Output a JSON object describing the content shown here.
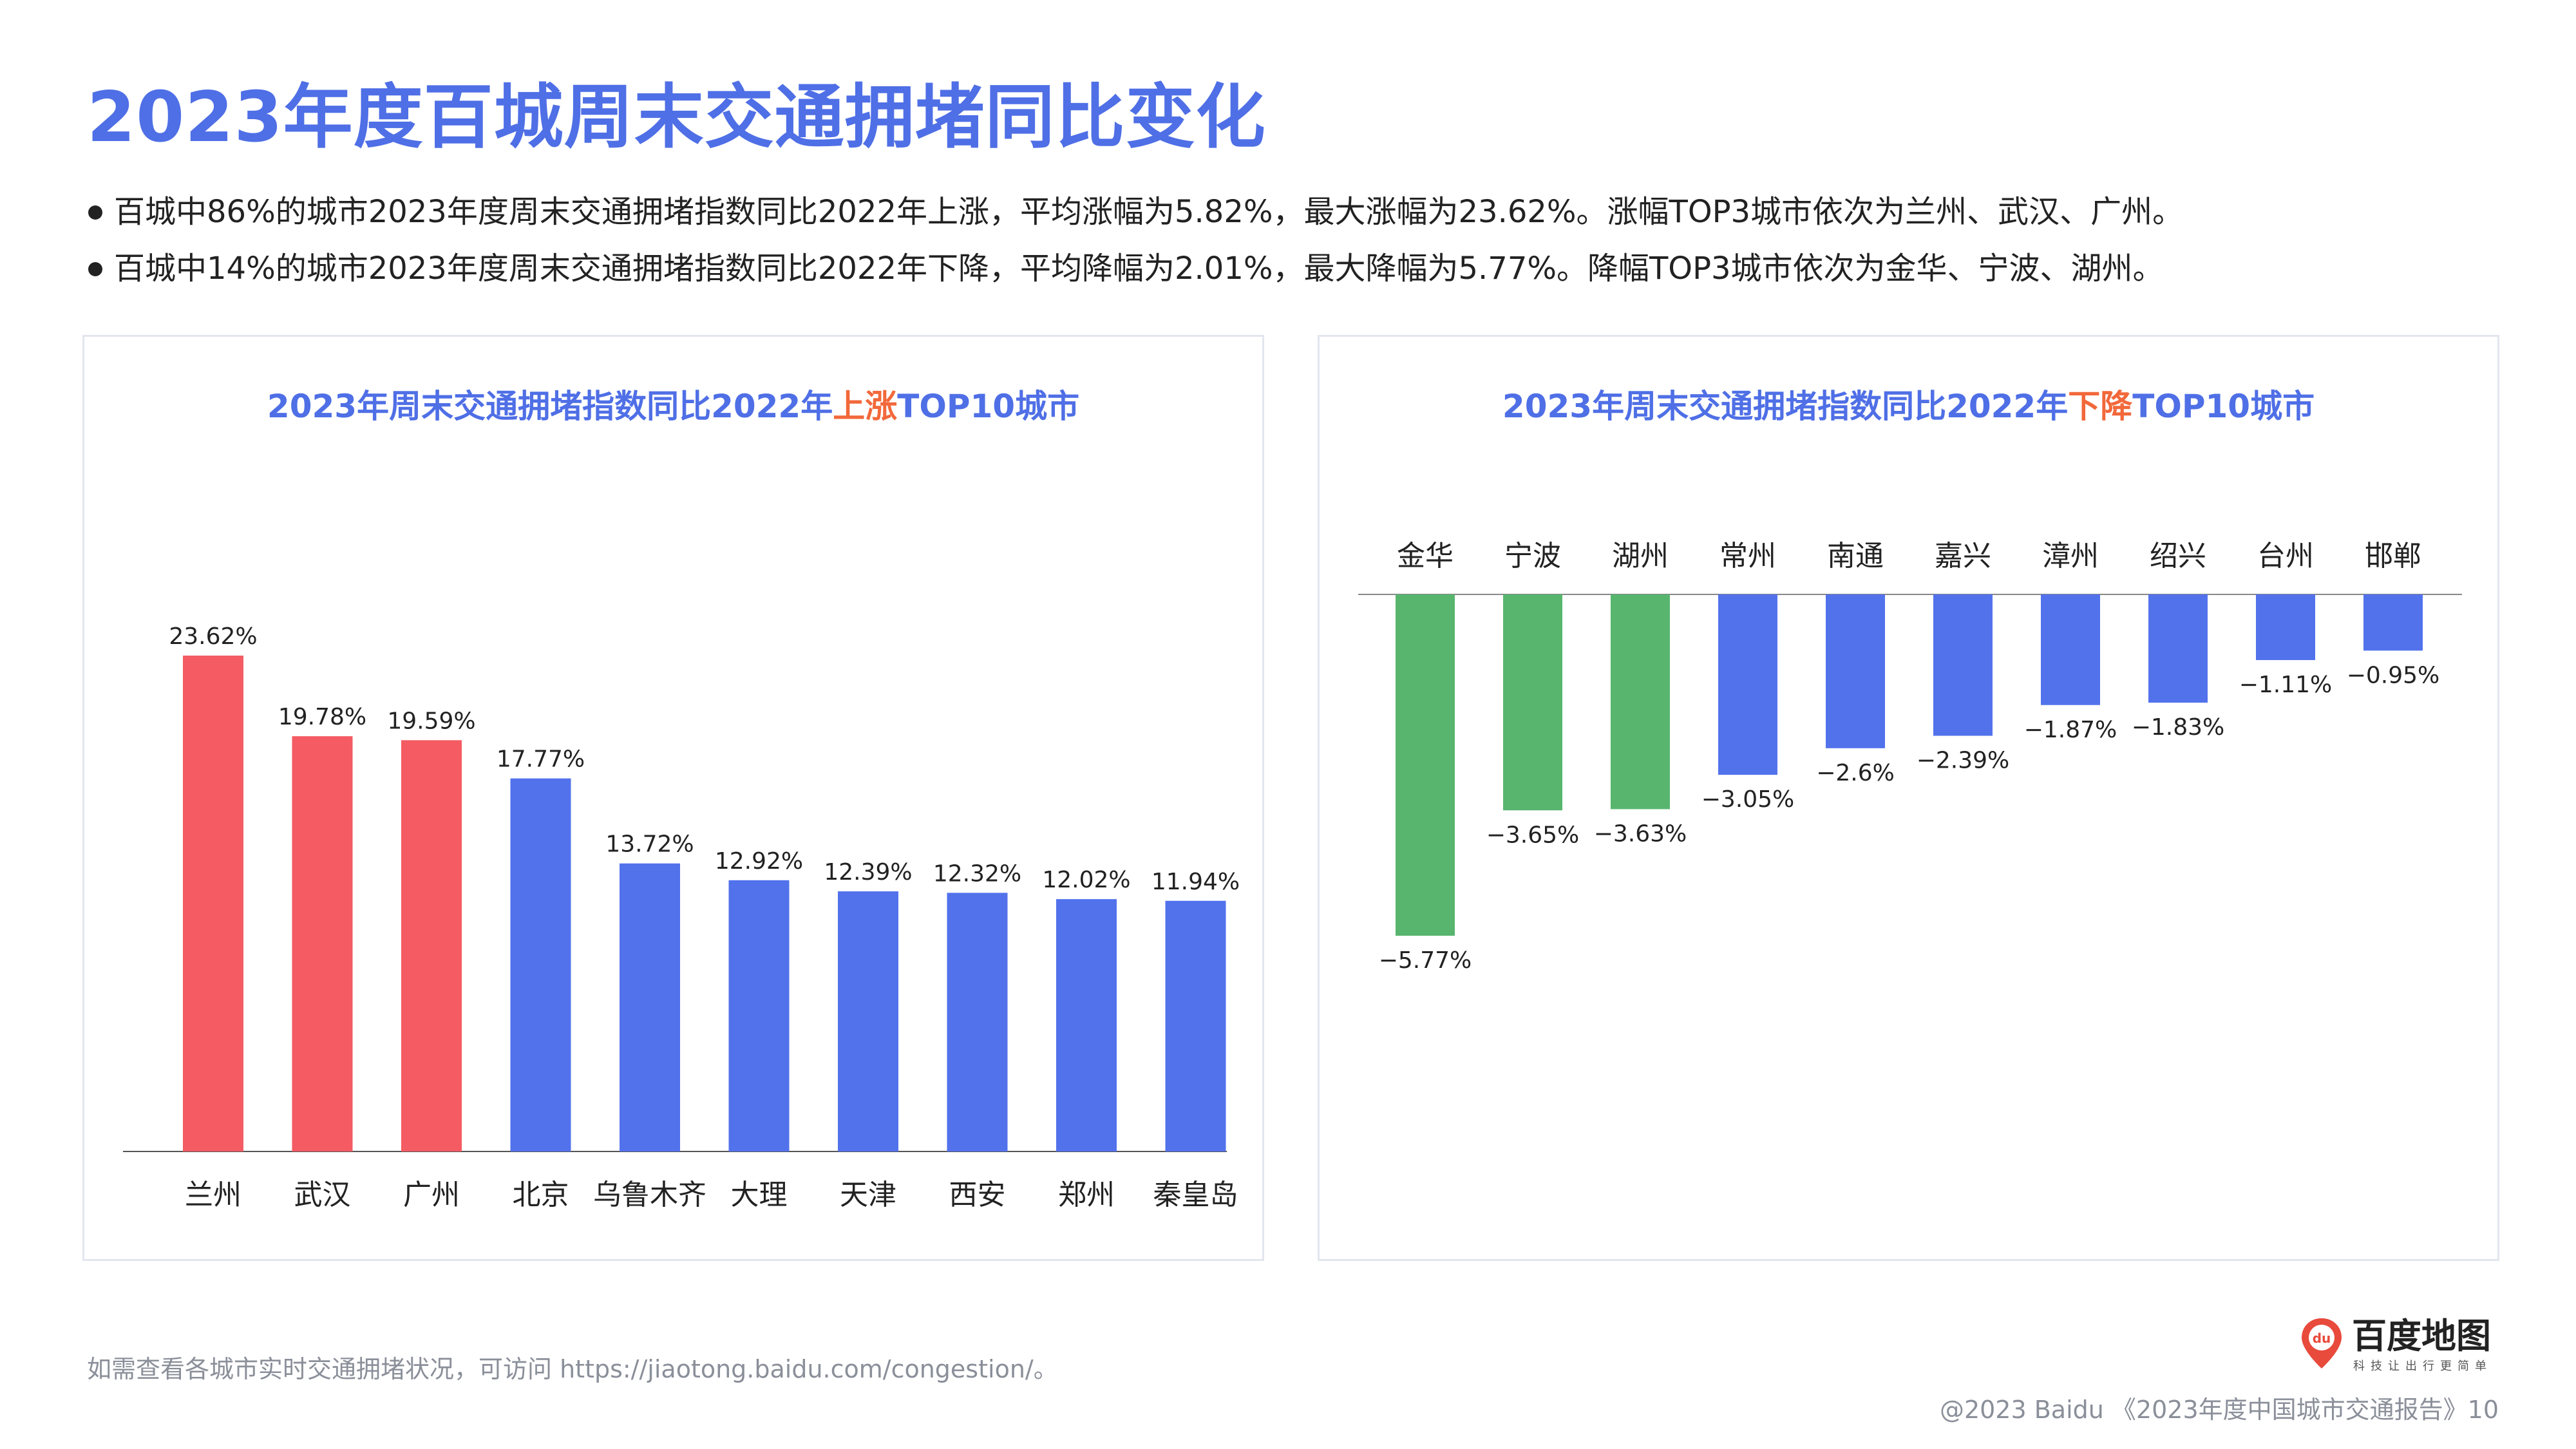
{
  "page": {
    "title": "2023年度百城周末交通拥堵同比变化",
    "bullets": [
      "百城中86%的城市2023年度周末交通拥堵指数同比2022年上涨，平均涨幅为5.82%，最大涨幅为23.62%。涨幅TOP3城市依次为兰州、武汉、广州。",
      "百城中14%的城市2023年度周末交通拥堵指数同比2022年下降，平均降幅为2.01%，最大降幅为5.77%。降幅TOP3城市依次为金华、宁波、湖州。"
    ],
    "footnote": "如需查看各城市实时交通拥堵状况，可访问 https://jiaotong.baidu.com/congestion/。",
    "copyright": "@2023 Baidu 《2023年度中国城市交通报告》10",
    "logo": {
      "name": "百度地图",
      "slogan": "科技让出行更简单",
      "icon": "baidu-map-pin-icon",
      "icon_text": "du"
    }
  },
  "colors": {
    "title": "#4F6FE6",
    "highlight": "#F2683A",
    "top3_rise": "#F45B62",
    "top3_fall": "#58B56E",
    "bar": "#5272EC"
  },
  "chart_data": [
    {
      "type": "bar",
      "title_prefix": "2023年周末交通拥堵指数同比2022年",
      "title_highlight": "上涨",
      "title_suffix": "TOP10城市",
      "categories": [
        "兰州",
        "武汉",
        "广州",
        "北京",
        "乌鲁木齐",
        "大理",
        "天津",
        "西安",
        "郑州",
        "秦皇岛"
      ],
      "values": [
        23.62,
        19.78,
        19.59,
        17.77,
        13.72,
        12.92,
        12.39,
        12.32,
        12.02,
        11.94
      ],
      "labels": [
        "23.62%",
        "19.78%",
        "19.59%",
        "17.77%",
        "13.72%",
        "12.92%",
        "12.39%",
        "12.32%",
        "12.02%",
        "11.94%"
      ],
      "highlight_count": 3,
      "ylim": [
        0,
        23.62
      ],
      "grid": false,
      "legend": "none"
    },
    {
      "type": "bar",
      "title_prefix": "2023年周末交通拥堵指数同比2022年",
      "title_highlight": "下降",
      "title_suffix": "TOP10城市",
      "categories": [
        "金华",
        "宁波",
        "湖州",
        "常州",
        "南通",
        "嘉兴",
        "漳州",
        "绍兴",
        "台州",
        "邯郸"
      ],
      "values": [
        -5.77,
        -3.65,
        -3.63,
        -3.05,
        -2.6,
        -2.39,
        -1.87,
        -1.83,
        -1.11,
        -0.95
      ],
      "labels": [
        "−5.77%",
        "−3.65%",
        "−3.63%",
        "−3.05%",
        "−2.6%",
        "−2.39%",
        "−1.87%",
        "−1.83%",
        "−1.11%",
        "−0.95%"
      ],
      "highlight_count": 3,
      "ylim": [
        -5.77,
        0
      ],
      "grid": false,
      "legend": "none"
    }
  ]
}
